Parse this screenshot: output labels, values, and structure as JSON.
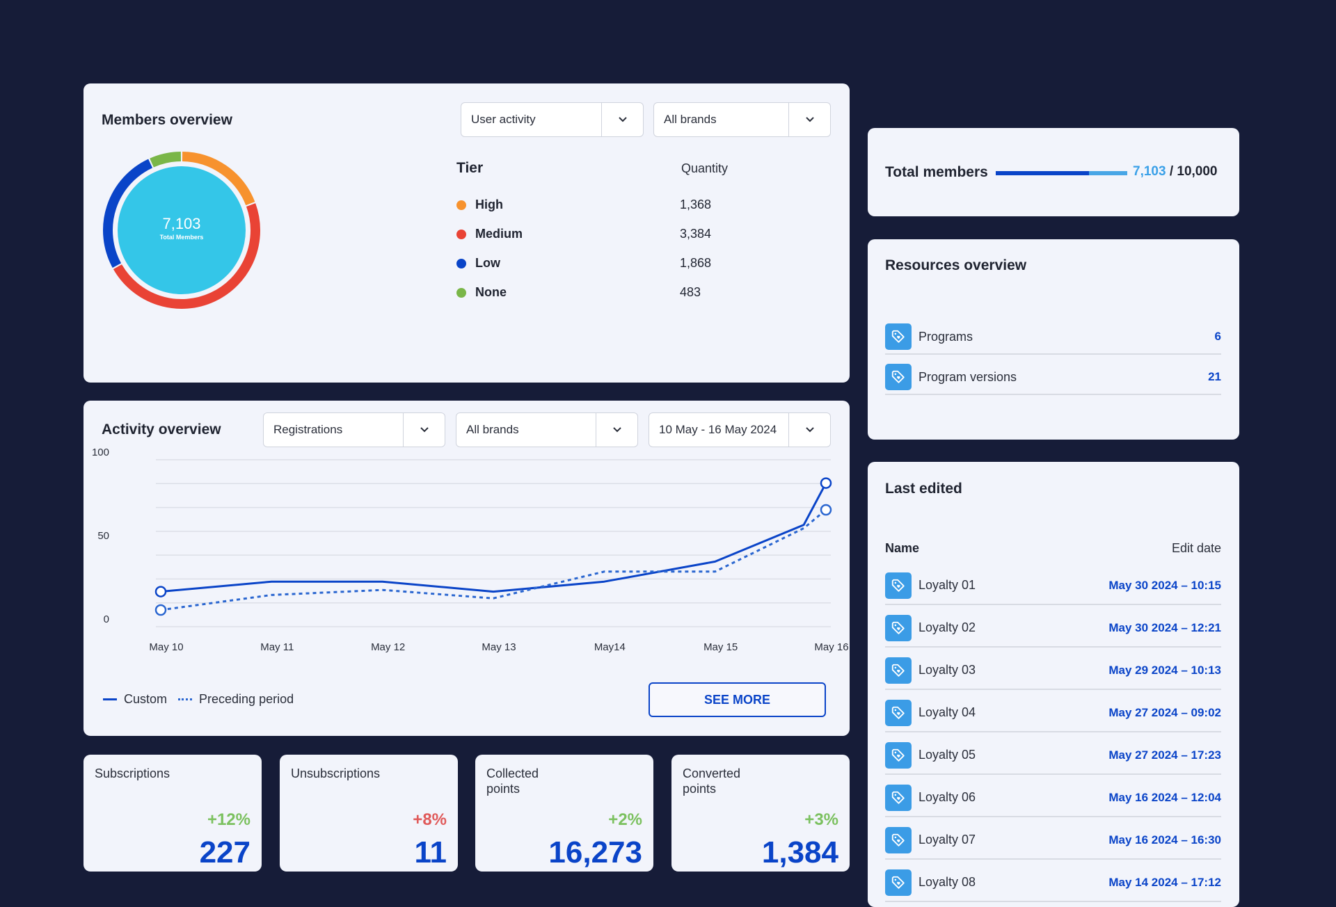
{
  "colors": {
    "background": "#161c38",
    "card": "#f2f4fb",
    "accent": "#0a44c8",
    "accent_light": "#3aa0e8",
    "donut_center": "#34c6e8",
    "high": "#f7922e",
    "medium": "#e94335",
    "low": "#0a44c8",
    "none": "#7ab648",
    "positive": "#7cc160",
    "negative": "#e05a5a"
  },
  "members": {
    "title": "Members overview",
    "filter1": "User activity",
    "filter2": "All brands",
    "total": "7,103",
    "total_label": "Total Members",
    "tier_header": "Tier",
    "quantity_header": "Quantity",
    "tiers": [
      {
        "name": "High",
        "quantity": "1,368",
        "value": 1368,
        "color": "#f7922e"
      },
      {
        "name": "Medium",
        "quantity": "3,384",
        "value": 3384,
        "color": "#e94335"
      },
      {
        "name": "Low",
        "quantity": "1,868",
        "value": 1868,
        "color": "#0a44c8"
      },
      {
        "name": "None",
        "quantity": "483",
        "value": 483,
        "color": "#7ab648"
      }
    ]
  },
  "activity": {
    "title": "Activity overview",
    "filter1": "Registrations",
    "filter2": "All brands",
    "filter3": "10 May - 16 May 2024",
    "see_more": "SEE MORE"
  },
  "chart_data": {
    "type": "line",
    "categories": [
      "May 10",
      "May 11",
      "May 12",
      "May 13",
      "May14",
      "May 15",
      "May 16"
    ],
    "x": [
      10,
      11,
      12,
      13,
      14,
      15,
      15.8,
      16
    ],
    "yticks": [
      "100",
      "50",
      "0"
    ],
    "ylim": [
      0,
      100
    ],
    "grid": true,
    "legend": "bottom-left",
    "series": [
      {
        "name": "Custom",
        "style": "solid",
        "values": [
          21,
          27,
          27,
          21,
          27,
          39,
          61,
          86
        ]
      },
      {
        "name": "Preceding period",
        "style": "dotted",
        "values": [
          10,
          19,
          22,
          17,
          33,
          33,
          59,
          70
        ]
      }
    ]
  },
  "total_members": {
    "label": "Total members",
    "current": "7,103",
    "max": "10,000",
    "fraction": 0.7103
  },
  "resources": {
    "title": "Resources overview",
    "items": [
      {
        "name": "Programs",
        "count": "6"
      },
      {
        "name": "Program versions",
        "count": "21"
      }
    ]
  },
  "last_edited": {
    "title": "Last edited",
    "name_header": "Name",
    "date_header": "Edit date",
    "items": [
      {
        "name": "Loyalty 01",
        "date": "May 30 2024 – 10:15"
      },
      {
        "name": "Loyalty 02",
        "date": "May 30 2024 – 12:21"
      },
      {
        "name": "Loyalty 03",
        "date": "May 29 2024 – 10:13"
      },
      {
        "name": "Loyalty 04",
        "date": "May 27 2024 – 09:02"
      },
      {
        "name": "Loyalty 05",
        "date": "May 27 2024 – 17:23"
      },
      {
        "name": "Loyalty 06",
        "date": "May 16 2024 – 12:04"
      },
      {
        "name": "Loyalty 07",
        "date": "May 16 2024 – 16:30"
      },
      {
        "name": "Loyalty 08",
        "date": "May 14 2024 – 17:12"
      }
    ]
  },
  "stats": [
    {
      "label": "Subscriptions",
      "change": "+12%",
      "trend": "positive",
      "value": "227"
    },
    {
      "label": "Unsubscriptions",
      "change": "+8%",
      "trend": "negative",
      "value": "11"
    },
    {
      "label": "Collected points",
      "change": "+2%",
      "trend": "positive",
      "value": "16,273"
    },
    {
      "label": "Converted points",
      "change": "+3%",
      "trend": "positive",
      "value": "1,384"
    }
  ]
}
